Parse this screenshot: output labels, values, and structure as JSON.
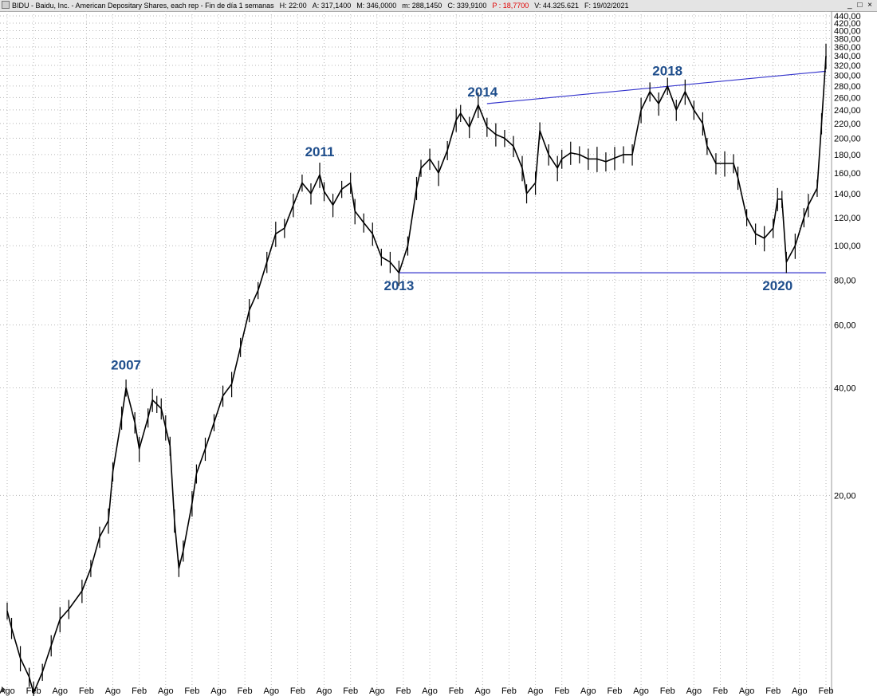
{
  "titlebar": {
    "symbol": "BIDU - Baidu, Inc. - American Depositary Shares, each rep - Fin de día 1 semanas",
    "h": "H: 22:00",
    "a": "A: 317,1400",
    "m": "M: 346,0000",
    "mn": "m: 288,1450",
    "c": "C: 339,9100",
    "p": "P : 18,7700",
    "v": "V: 44.325.621",
    "f": "F: 19/02/2021",
    "window_controls": "_ □ ×"
  },
  "colors": {
    "price": "#000000",
    "trendline": "#3333cc",
    "annotation": "#1f4e8c",
    "grid": "#b8b8b8",
    "change_red": "#e00000"
  },
  "chart_data": {
    "type": "line",
    "style": "weekly-ohlc-bars",
    "title": "BIDU - Baidu, Inc. - American Depositary Shares, each rep - Fin de día 1 semanas",
    "y_scale": "log",
    "y_axis_position": "right",
    "grid": true,
    "y_ticks": [
      "440,00",
      "420,00",
      "400,00",
      "380,00",
      "360,00",
      "340,00",
      "320,00",
      "300,00",
      "280,00",
      "260,00",
      "240,00",
      "220,00",
      "200,00",
      "180,00",
      "160,00",
      "140,00",
      "120,00",
      "100,00",
      "80,00",
      "60,00",
      "40,00",
      "20,00"
    ],
    "y_tick_values": [
      440,
      420,
      400,
      380,
      360,
      340,
      320,
      300,
      280,
      260,
      240,
      220,
      200,
      180,
      160,
      140,
      120,
      100,
      80,
      60,
      40,
      20
    ],
    "x_ticks": [
      "Ago",
      "Feb",
      "Ago",
      "Feb",
      "Ago",
      "Feb",
      "Ago",
      "Feb",
      "Ago",
      "Feb",
      "Ago",
      "Feb",
      "Ago",
      "Feb",
      "Ago",
      "Feb",
      "Ago",
      "Feb",
      "Ago",
      "Feb",
      "Ago",
      "Feb",
      "Ago",
      "Feb",
      "Ago",
      "Feb",
      "Ago",
      "Feb",
      "Ago",
      "Feb",
      "Ago",
      "Feb"
    ],
    "x_tick_dates": [
      "2005-08",
      "2006-02",
      "2006-08",
      "2007-02",
      "2007-08",
      "2008-02",
      "2008-08",
      "2009-02",
      "2009-08",
      "2010-02",
      "2010-08",
      "2011-02",
      "2011-08",
      "2012-02",
      "2012-08",
      "2013-02",
      "2013-08",
      "2014-02",
      "2014-08",
      "2015-02",
      "2015-08",
      "2016-02",
      "2016-08",
      "2017-02",
      "2017-08",
      "2018-02",
      "2018-08",
      "2019-02",
      "2019-08",
      "2020-02",
      "2020-08",
      "2021-02"
    ],
    "series": [
      {
        "x": [
          "2005-08",
          "2005-09",
          "2005-11",
          "2006-01",
          "2006-02",
          "2006-04",
          "2006-06",
          "2006-08",
          "2006-10",
          "2007-01",
          "2007-03",
          "2007-05",
          "2007-07",
          "2007-08",
          "2007-10",
          "2007-11",
          "2008-01",
          "2008-02",
          "2008-04",
          "2008-05",
          "2008-06",
          "2008-07",
          "2008-08",
          "2008-09",
          "2008-10",
          "2008-11",
          "2008-12",
          "2009-02",
          "2009-03",
          "2009-05",
          "2009-07",
          "2009-09",
          "2009-11",
          "2010-01",
          "2010-03",
          "2010-05",
          "2010-07",
          "2010-09",
          "2010-11",
          "2011-01",
          "2011-03",
          "2011-05",
          "2011-07",
          "2011-08",
          "2011-10",
          "2011-12",
          "2012-02",
          "2012-03",
          "2012-05",
          "2012-07",
          "2012-09",
          "2012-11",
          "2013-01",
          "2013-03",
          "2013-05",
          "2013-06",
          "2013-08",
          "2013-10",
          "2013-12",
          "2014-02",
          "2014-03",
          "2014-05",
          "2014-07",
          "2014-09",
          "2014-11",
          "2015-01",
          "2015-03",
          "2015-05",
          "2015-06",
          "2015-08",
          "2015-09",
          "2015-11",
          "2016-01",
          "2016-02",
          "2016-04",
          "2016-06",
          "2016-08",
          "2016-10",
          "2016-12",
          "2017-02",
          "2017-04",
          "2017-06",
          "2017-08",
          "2017-10",
          "2017-12",
          "2018-02",
          "2018-04",
          "2018-06",
          "2018-08",
          "2018-10",
          "2018-11",
          "2019-01",
          "2019-03",
          "2019-05",
          "2019-06",
          "2019-08",
          "2019-10",
          "2019-12",
          "2020-02",
          "2020-03",
          "2020-04",
          "2020-05",
          "2020-07",
          "2020-09",
          "2020-10",
          "2020-12",
          "2021-01",
          "2021-02"
        ],
        "y": [
          9.5,
          8.5,
          7.0,
          6.2,
          5.6,
          6.4,
          7.6,
          9.0,
          9.6,
          10.8,
          12.5,
          15.3,
          17.0,
          23.3,
          33.0,
          40.0,
          32.0,
          27.0,
          33.0,
          37.0,
          36.0,
          35.0,
          31.0,
          27.5,
          17.0,
          12.5,
          14.0,
          19.0,
          23.0,
          27.0,
          32.0,
          38.0,
          41.0,
          52.0,
          66.0,
          75.0,
          90.0,
          108.0,
          112.0,
          130.0,
          150.0,
          140.0,
          158.0,
          142.0,
          130.0,
          144.0,
          150.0,
          125.0,
          116.0,
          108.0,
          93.0,
          90.0,
          84.0,
          100.0,
          145.0,
          165.0,
          175.0,
          160.0,
          185.0,
          225.0,
          235.0,
          215.0,
          248.0,
          215.0,
          205.0,
          200.0,
          190.0,
          165.0,
          140.0,
          150.0,
          210.0,
          180.0,
          165.0,
          175.0,
          182.0,
          180.0,
          175.0,
          175.0,
          172.0,
          176.0,
          180.0,
          180.0,
          240.0,
          270.0,
          250.0,
          280.0,
          240.0,
          270.0,
          240.0,
          220.0,
          190.0,
          170.0,
          170.0,
          170.0,
          155.0,
          120.0,
          108.0,
          105.0,
          112.0,
          135.0,
          135.0,
          90.0,
          100.0,
          120.0,
          130.0,
          145.0,
          220.0,
          340.0
        ]
      }
    ],
    "trendlines": [
      {
        "from": [
          "2014-09",
          250
        ],
        "to": [
          "2021-02",
          308
        ]
      },
      {
        "from": [
          "2013-01",
          84
        ],
        "to": [
          "2021-02",
          84
        ]
      }
    ],
    "annotations": [
      {
        "text": "2007",
        "x": "2007-11",
        "y": 45
      },
      {
        "text": "2011",
        "x": "2011-07",
        "y": 178
      },
      {
        "text": "2013",
        "x": "2013-01",
        "y": 75
      },
      {
        "text": "2014",
        "x": "2014-08",
        "y": 262
      },
      {
        "text": "2018",
        "x": "2018-02",
        "y": 300
      },
      {
        "text": "2020",
        "x": "2020-03",
        "y": 75
      }
    ]
  }
}
